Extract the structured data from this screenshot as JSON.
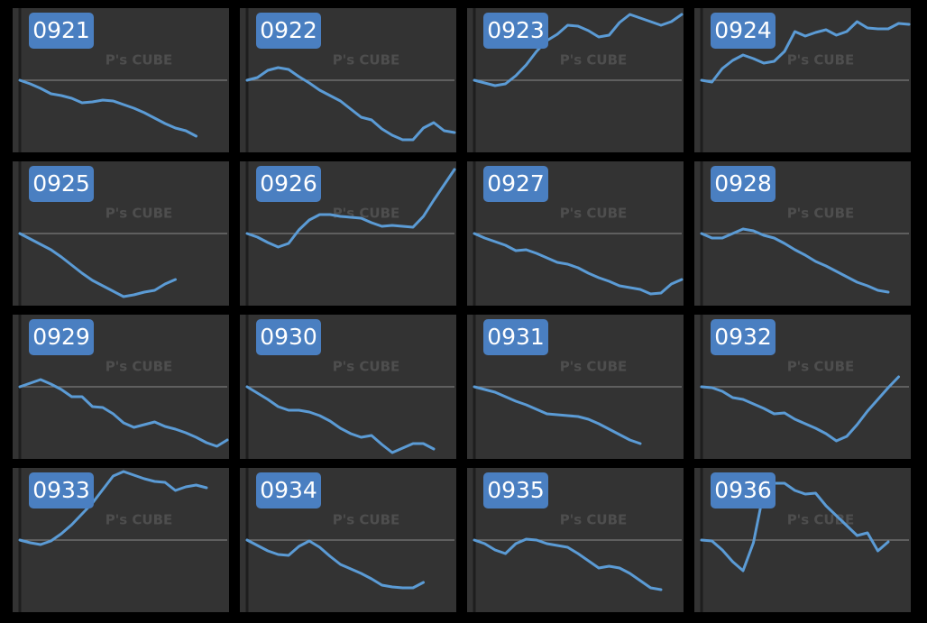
{
  "watermark": "P's CUBE",
  "chart_data": [
    {
      "type": "line",
      "title": "0921",
      "color": "#5b9bd5",
      "xlim": [
        0,
        20
      ],
      "ylim": [
        -80,
        80
      ],
      "hline": 0,
      "values": [
        0,
        -4,
        -9,
        -15,
        -17,
        -20,
        -25,
        -24,
        -22,
        -23,
        -27,
        -31,
        -36,
        -42,
        -48,
        -53,
        -56,
        -62
      ]
    },
    {
      "type": "line",
      "title": "0922",
      "color": "#5b9bd5",
      "xlim": [
        0,
        20
      ],
      "ylim": [
        -80,
        80
      ],
      "hline": 0,
      "values": [
        0,
        3,
        11,
        14,
        12,
        4,
        -3,
        -11,
        -17,
        -23,
        -32,
        -41,
        -44,
        -54,
        -61,
        -66,
        -66,
        -53,
        -47,
        -56,
        -58
      ]
    },
    {
      "type": "line",
      "title": "0923",
      "color": "#5b9bd5",
      "xlim": [
        0,
        20
      ],
      "ylim": [
        -80,
        80
      ],
      "hline": 0,
      "values": [
        0,
        -3,
        -6,
        -4,
        5,
        17,
        32,
        44,
        51,
        61,
        60,
        55,
        48,
        50,
        64,
        73,
        69,
        65,
        61,
        65,
        73
      ]
    },
    {
      "type": "line",
      "title": "0924",
      "color": "#5b9bd5",
      "xlim": [
        0,
        20
      ],
      "ylim": [
        -80,
        80
      ],
      "hline": 0,
      "values": [
        0,
        -2,
        13,
        22,
        28,
        24,
        19,
        21,
        32,
        54,
        49,
        53,
        56,
        50,
        54,
        65,
        58,
        57,
        57,
        63,
        62
      ]
    },
    {
      "type": "line",
      "title": "0925",
      "color": "#5b9bd5",
      "xlim": [
        0,
        20
      ],
      "ylim": [
        -80,
        80
      ],
      "hline": 0,
      "values": [
        0,
        -6,
        -12,
        -18,
        -26,
        -35,
        -44,
        -52,
        -58,
        -64,
        -70,
        -68,
        -65,
        -63,
        -56,
        -51
      ]
    },
    {
      "type": "line",
      "title": "0926",
      "color": "#5b9bd5",
      "xlim": [
        0,
        20
      ],
      "ylim": [
        -80,
        80
      ],
      "hline": 0,
      "values": [
        0,
        -4,
        -10,
        -15,
        -11,
        4,
        15,
        21,
        21,
        19,
        18,
        17,
        12,
        8,
        9,
        8,
        7,
        19,
        37,
        54,
        71
      ]
    },
    {
      "type": "line",
      "title": "0927",
      "color": "#5b9bd5",
      "xlim": [
        0,
        20
      ],
      "ylim": [
        -80,
        80
      ],
      "hline": 0,
      "values": [
        0,
        -5,
        -9,
        -13,
        -19,
        -18,
        -22,
        -27,
        -32,
        -34,
        -38,
        -44,
        -49,
        -53,
        -58,
        -60,
        -62,
        -67,
        -66,
        -56,
        -51
      ]
    },
    {
      "type": "line",
      "title": "0928",
      "color": "#5b9bd5",
      "xlim": [
        0,
        20
      ],
      "ylim": [
        -80,
        80
      ],
      "hline": 0,
      "values": [
        0,
        -5,
        -5,
        0,
        5,
        3,
        -2,
        -5,
        -11,
        -18,
        -24,
        -31,
        -36,
        -42,
        -48,
        -54,
        -58,
        -63,
        -65
      ]
    },
    {
      "type": "line",
      "title": "0929",
      "color": "#5b9bd5",
      "xlim": [
        0,
        20
      ],
      "ylim": [
        -80,
        80
      ],
      "hline": 0,
      "values": [
        0,
        4,
        8,
        3,
        -3,
        -11,
        -11,
        -22,
        -23,
        -30,
        -40,
        -45,
        -42,
        -39,
        -44,
        -47,
        -51,
        -56,
        -62,
        -66,
        -59
      ]
    },
    {
      "type": "line",
      "title": "0930",
      "color": "#5b9bd5",
      "xlim": [
        0,
        20
      ],
      "ylim": [
        -80,
        80
      ],
      "hline": 0,
      "values": [
        0,
        -7,
        -14,
        -22,
        -26,
        -26,
        -28,
        -32,
        -38,
        -46,
        -52,
        -56,
        -54,
        -64,
        -73,
        -68,
        -63,
        -63,
        -69
      ]
    },
    {
      "type": "line",
      "title": "0931",
      "color": "#5b9bd5",
      "xlim": [
        0,
        20
      ],
      "ylim": [
        -80,
        80
      ],
      "hline": 0,
      "values": [
        0,
        -3,
        -6,
        -11,
        -16,
        -20,
        -25,
        -30,
        -31,
        -32,
        -33,
        -36,
        -41,
        -47,
        -53,
        -59,
        -63
      ]
    },
    {
      "type": "line",
      "title": "0932",
      "color": "#5b9bd5",
      "xlim": [
        0,
        20
      ],
      "ylim": [
        -80,
        80
      ],
      "hline": 0,
      "values": [
        0,
        -1,
        -5,
        -12,
        -14,
        -19,
        -24,
        -30,
        -29,
        -36,
        -41,
        -46,
        -52,
        -60,
        -55,
        -42,
        -27,
        -14,
        -1,
        11
      ]
    },
    {
      "type": "line",
      "title": "0933",
      "color": "#5b9bd5",
      "xlim": [
        0,
        20
      ],
      "ylim": [
        -80,
        80
      ],
      "hline": 0,
      "values": [
        0,
        -3,
        -5,
        -1,
        7,
        17,
        29,
        41,
        56,
        71,
        76,
        72,
        68,
        65,
        64,
        55,
        59,
        61,
        58
      ]
    },
    {
      "type": "line",
      "title": "0934",
      "color": "#5b9bd5",
      "xlim": [
        0,
        20
      ],
      "ylim": [
        -80,
        80
      ],
      "hline": 0,
      "values": [
        0,
        -6,
        -12,
        -16,
        -17,
        -7,
        -1,
        -8,
        -18,
        -27,
        -32,
        -37,
        -43,
        -50,
        -52,
        -53,
        -53,
        -47
      ]
    },
    {
      "type": "line",
      "title": "0935",
      "color": "#5b9bd5",
      "xlim": [
        0,
        20
      ],
      "ylim": [
        -80,
        80
      ],
      "hline": 0,
      "values": [
        0,
        -4,
        -11,
        -15,
        -4,
        1,
        0,
        -4,
        -6,
        -8,
        -15,
        -23,
        -31,
        -29,
        -31,
        -37,
        -45,
        -53,
        -55
      ]
    },
    {
      "type": "line",
      "title": "0936",
      "color": "#5b9bd5",
      "xlim": [
        0,
        20
      ],
      "ylim": [
        -80,
        80
      ],
      "hline": 0,
      "values": [
        0,
        -1,
        -11,
        -24,
        -34,
        -3,
        54,
        63,
        63,
        55,
        51,
        52,
        38,
        27,
        16,
        5,
        8,
        -12,
        -2
      ]
    }
  ]
}
